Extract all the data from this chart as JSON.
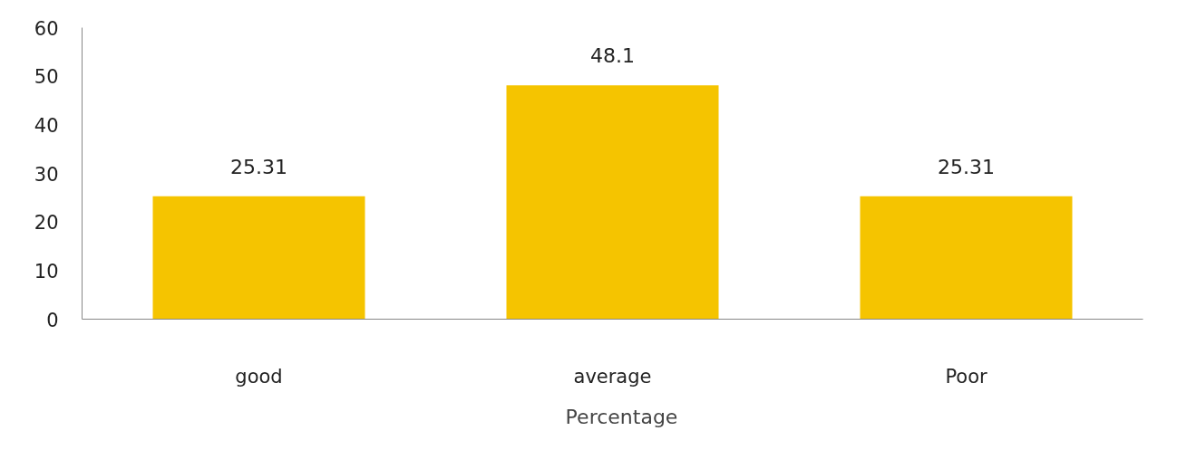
{
  "chart_data": {
    "type": "bar",
    "categories": [
      "good",
      "average",
      "Poor"
    ],
    "series": [
      {
        "name": "Percentage",
        "color": "#f5c400",
        "values": [
          25.31,
          48.1,
          25.31
        ]
      }
    ],
    "ylim": [
      0,
      60
    ],
    "yticks": [
      0,
      10,
      20,
      30,
      40,
      50,
      60
    ],
    "grid": false,
    "legend": "bottom",
    "data_labels": true
  }
}
